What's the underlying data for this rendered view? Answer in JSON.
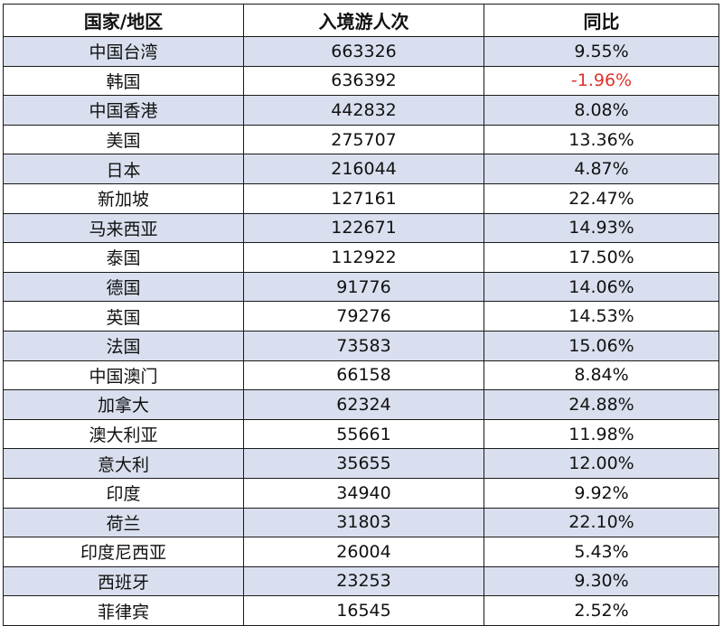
{
  "headers": [
    "国家/地区",
    "入境游人次",
    "同比"
  ],
  "rows": [
    {
      "country": "中国台湾",
      "visitors": "663326",
      "yoy": "9.55%"
    },
    {
      "country": "韩国",
      "visitors": "636392",
      "yoy": "-1.96%"
    },
    {
      "country": "中国香港",
      "visitors": "442832",
      "yoy": "8.08%"
    },
    {
      "country": "美国",
      "visitors": "275707",
      "yoy": "13.36%"
    },
    {
      "country": "日本",
      "visitors": "216044",
      "yoy": "4.87%"
    },
    {
      "country": "新加坡",
      "visitors": "127161",
      "yoy": "22.47%"
    },
    {
      "country": "马来西亚",
      "visitors": "122671",
      "yoy": "14.93%"
    },
    {
      "country": "泰国",
      "visitors": "112922",
      "yoy": "17.50%"
    },
    {
      "country": "德国",
      "visitors": "91776",
      "yoy": "14.06%"
    },
    {
      "country": "英国",
      "visitors": "79276",
      "yoy": "14.53%"
    },
    {
      "country": "法国",
      "visitors": "73583",
      "yoy": "15.06%"
    },
    {
      "country": "中国澳门",
      "visitors": "66158",
      "yoy": "8.84%"
    },
    {
      "country": "加拿大",
      "visitors": "62324",
      "yoy": "24.88%"
    },
    {
      "country": "澳大利亚",
      "visitors": "55661",
      "yoy": "11.98%"
    },
    {
      "country": "意大利",
      "visitors": "35655",
      "yoy": "12.00%"
    },
    {
      "country": "印度",
      "visitors": "34940",
      "yoy": "9.92%"
    },
    {
      "country": "荷兰",
      "visitors": "31803",
      "yoy": "22.10%"
    },
    {
      "country": "印度尼西亚",
      "visitors": "26004",
      "yoy": "5.43%"
    },
    {
      "country": "西班牙",
      "visitors": "23253",
      "yoy": "9.30%"
    },
    {
      "country": "菲律宾",
      "visitors": "16545",
      "yoy": "2.52%"
    }
  ],
  "colors": {
    "row_shade": "#d9dfee",
    "negative": "#e0332b",
    "border": "#1a1a1a"
  }
}
